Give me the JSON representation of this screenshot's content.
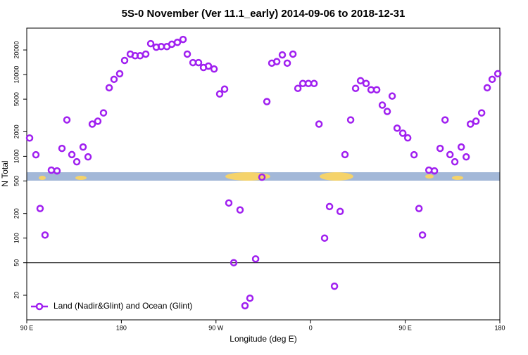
{
  "chart_data": {
    "type": "scatter",
    "title": "5S-0 November (Ver 11.1_early)   2014-09-06 to 2018-12-31",
    "x_label": "Longitude (deg E)",
    "y_label": "N Total",
    "xlim": [
      90,
      540
    ],
    "xticks": [
      {
        "value": 90,
        "label": "90 E"
      },
      180,
      {
        "value": 270,
        "label": "90 W"
      },
      {
        "value": 360,
        "label": "0"
      },
      {
        "value": 450,
        "label": "90 E"
      },
      {
        "value": 540,
        "label": "180"
      }
    ],
    "ylim": [
      10,
      37000
    ],
    "y_log": true,
    "yticks": [
      20,
      50,
      100,
      200,
      500,
      1000,
      2000,
      5000,
      10000,
      20000
    ],
    "reference_line": 50,
    "legend": "bottom-left",
    "series": [
      {
        "name": "Land (Nadir&Glint) and Ocean (Glint)",
        "color": "#a020f0",
        "x": [
          92.7,
          98.7,
          102.7,
          107.4,
          113.4,
          118.8,
          123.5,
          128.2,
          132.9,
          137.6,
          143.6,
          148.3,
          152.3,
          157.6,
          163,
          168.4,
          173,
          178.4,
          183.1,
          188.5,
          193.1,
          197.8,
          203.2,
          207.9,
          213.2,
          217.9,
          223.3,
          228,
          233.3,
          238.7,
          242.7,
          248.1,
          253.4,
          258.1,
          262.8,
          268.2,
          273.5,
          278.2,
          282.2,
          286.9,
          292.9,
          297.6,
          302.3,
          307.7,
          313.7,
          318.4,
          323.1,
          327.8,
          333.1,
          337.8,
          343.2,
          347.9,
          352.6,
          357.9,
          363.3,
          368,
          373.3,
          378,
          382.7,
          388.1,
          392.7,
          398.1,
          402.8,
          407.5,
          412.8,
          417.5,
          422.9,
          428.2,
          432.9,
          437.6,
          442.3,
          447.7,
          452.4,
          458.4,
          463.1,
          466.4,
          472.5,
          477.8,
          483.2,
          487.9,
          492.6,
          497.2,
          503.3,
          508,
          512,
          517.3,
          522.7,
          528,
          532.7,
          538.1
        ],
        "values": [
          1675,
          1045,
          230,
          109,
          678,
          664,
          1250,
          2790,
          1050,
          857,
          1300,
          985,
          2480,
          2690,
          3400,
          6900,
          8750,
          10240,
          14900,
          17800,
          17000,
          17000,
          17800,
          23900,
          21600,
          22000,
          22000,
          23500,
          24800,
          26900,
          17800,
          14000,
          14000,
          12200,
          12700,
          11700,
          5790,
          6640,
          269,
          50,
          221,
          14.9,
          18.4,
          55.6,
          556,
          4670,
          13800,
          14400,
          17400,
          13800,
          17800,
          6780,
          7780,
          7780,
          7780,
          2480,
          100,
          243,
          25.8,
          212,
          1050,
          2790,
          6780,
          8410,
          7780,
          6520,
          6520,
          4230,
          3540,
          5460,
          2210,
          1920,
          1680,
          1045,
          230,
          109,
          678,
          664,
          1250,
          2790,
          1050,
          857,
          1300,
          985,
          2480,
          2690,
          3400,
          6900,
          8750,
          10240
        ]
      }
    ]
  }
}
